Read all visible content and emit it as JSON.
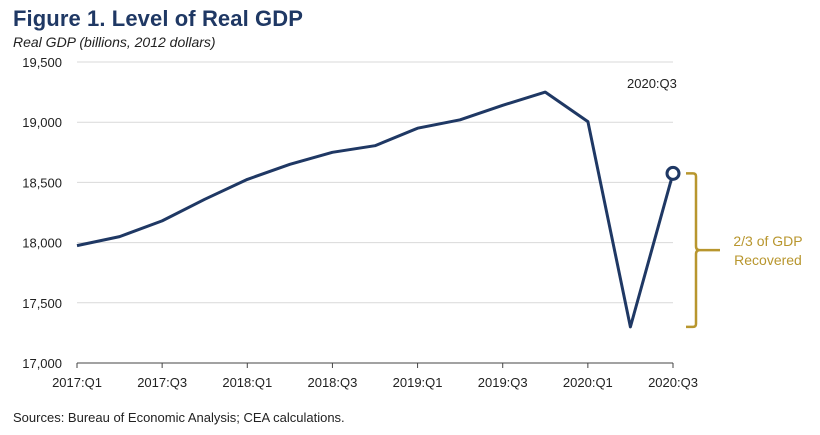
{
  "chart_data": {
    "type": "line",
    "title": "Figure 1. Level of Real GDP",
    "subtitle": "Real GDP (billions, 2012 dollars)",
    "source": "Sources: Bureau of Economic Analysis; CEA calculations.",
    "x": [
      "2017:Q1",
      "2017:Q2",
      "2017:Q3",
      "2017:Q4",
      "2018:Q1",
      "2018:Q2",
      "2018:Q3",
      "2018:Q4",
      "2019:Q1",
      "2019:Q2",
      "2019:Q3",
      "2019:Q4",
      "2020:Q1",
      "2020:Q2",
      "2020:Q3"
    ],
    "x_tick_labels": [
      "2017:Q1",
      "2017:Q3",
      "2018:Q1",
      "2018:Q3",
      "2019:Q1",
      "2019:Q3",
      "2020:Q1",
      "2020:Q3"
    ],
    "series": [
      {
        "values": [
          17975,
          18050,
          18180,
          18360,
          18525,
          18650,
          18750,
          18805,
          18950,
          19020,
          19140,
          19250,
          19005,
          17300,
          18575
        ]
      }
    ],
    "ylim": [
      17000,
      19500
    ],
    "y_ticks": [
      17000,
      17500,
      18000,
      18500,
      19000,
      19500
    ],
    "y_tick_labels": [
      "17,000",
      "17,500",
      "18,000",
      "18,500",
      "19,000",
      "19,500"
    ],
    "grid": true,
    "colors": {
      "line": "#1f3864",
      "bracket": "#b8962e",
      "grid": "#d9d9d9"
    },
    "annotations": {
      "point_label": "2020:Q3",
      "bracket_label_line1": "2/3 of GDP",
      "bracket_label_line2": "Recovered"
    }
  }
}
